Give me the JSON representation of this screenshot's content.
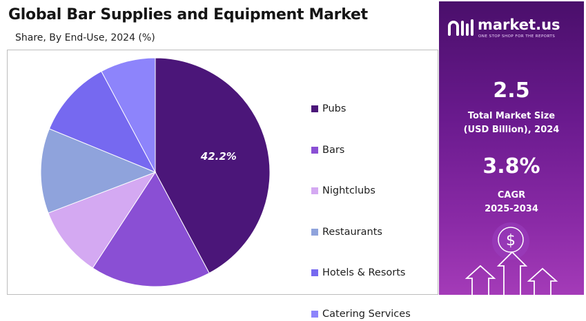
{
  "header": {
    "title": "Global Bar Supplies and Equipment Market",
    "subtitle": "Share, By End-Use, 2024 (%)"
  },
  "chart_data": {
    "type": "pie",
    "title": "Global Bar Supplies and Equipment Market",
    "subtitle": "Share, By End-Use, 2024 (%)",
    "categories": [
      "Pubs",
      "Bars",
      "Nightclubs",
      "Restaurants",
      "Hotels & Resorts",
      "Catering Services"
    ],
    "values": [
      42.2,
      17.0,
      10.0,
      12.0,
      11.0,
      7.8
    ],
    "colors": [
      "#4b1679",
      "#8a4fd4",
      "#d4a9f2",
      "#8fa3dc",
      "#7669f0",
      "#8d84fb"
    ],
    "data_labels": [
      "42.2%",
      "",
      "",
      "",
      "",
      ""
    ],
    "legend_position": "right",
    "start_angle_deg": 0,
    "direction": "clockwise"
  },
  "sidebar": {
    "brand_name": "market.us",
    "brand_tagline": "ONE STOP SHOP FOR THE REPORTS",
    "market_size_value": "2.5",
    "market_size_label_line1": "Total Market Size",
    "market_size_label_line2": "(USD Billion), 2024",
    "cagr_value": "3.8%",
    "cagr_label_line1": "CAGR",
    "cagr_label_line2": "2025-2034",
    "dollar_symbol": "$",
    "icons": [
      "market-us-logo-icon",
      "dollar-coin-icon",
      "growth-arrows-icon"
    ],
    "background_colors": [
      "#4a0f6b",
      "#a43bb8"
    ]
  }
}
